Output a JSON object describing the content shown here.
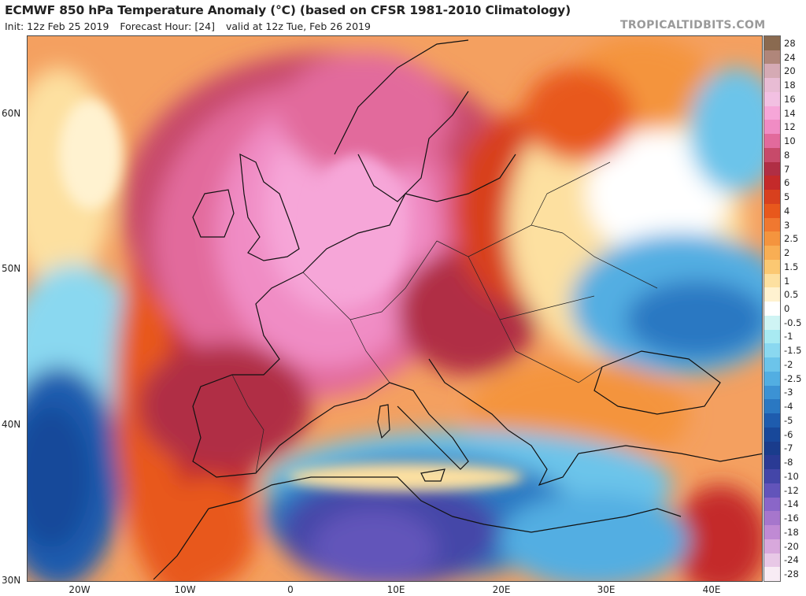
{
  "header": {
    "title": "ECMWF 850 hPa Temperature Anomaly (°C) (based on CFSR 1981-2010 Climatology)",
    "init": "Init: 12z Feb 25 2019",
    "forecast_hour": "Forecast Hour: [24]",
    "valid": "valid at 12z Tue, Feb 26 2019",
    "brand": "TROPICALTIDBITS.COM"
  },
  "axes": {
    "lat_labels": [
      "60N",
      "50N",
      "40N",
      "30N"
    ],
    "lon_labels": [
      "20W",
      "10W",
      "0",
      "10E",
      "20E",
      "30E",
      "40E"
    ]
  },
  "colorbar": {
    "labels": [
      "28",
      "24",
      "20",
      "18",
      "16",
      "14",
      "12",
      "10",
      "8",
      "7",
      "6",
      "5",
      "4",
      "3",
      "2.5",
      "2",
      "1.5",
      "1",
      "0.5",
      "0",
      "-0.5",
      "-1",
      "-1.5",
      "-2",
      "-2.5",
      "-3",
      "-4",
      "-5",
      "-6",
      "-7",
      "-8",
      "-10",
      "-12",
      "-14",
      "-16",
      "-18",
      "-20",
      "-24",
      "-28"
    ],
    "colors": [
      "#8a6a50",
      "#b0867a",
      "#d5aab4",
      "#e8bcd4",
      "#f2c0e2",
      "#f6a6d8",
      "#f08cc4",
      "#e26a9c",
      "#c74a6a",
      "#b02e44",
      "#c42a2a",
      "#d8401e",
      "#e8581c",
      "#f07830",
      "#f4943e",
      "#f8ae54",
      "#fbc872",
      "#fde0a0",
      "#fff2d0",
      "#ffffff",
      "#cff4f4",
      "#a8eaf2",
      "#8ad8f0",
      "#6cc4ea",
      "#52aee2",
      "#3c92d4",
      "#2a78c2",
      "#1e5cae",
      "#18489a",
      "#1a3c8c",
      "#2a3a94",
      "#4446a8",
      "#6254ba",
      "#8a66c8",
      "#a676cc",
      "#c08ad4",
      "#d8a8dc",
      "#e8c8e6",
      "#f8ecf4"
    ]
  },
  "map_overlay": {
    "colors": {
      "ocean_warm_far": "#f2a070",
      "warm_strong": "#c42a2a",
      "warm_max": "#f6a6d8",
      "neutral": "#ffffff",
      "cold": "#2a78c2",
      "cold_strong": "#4446a8",
      "coast": "#111111"
    }
  }
}
